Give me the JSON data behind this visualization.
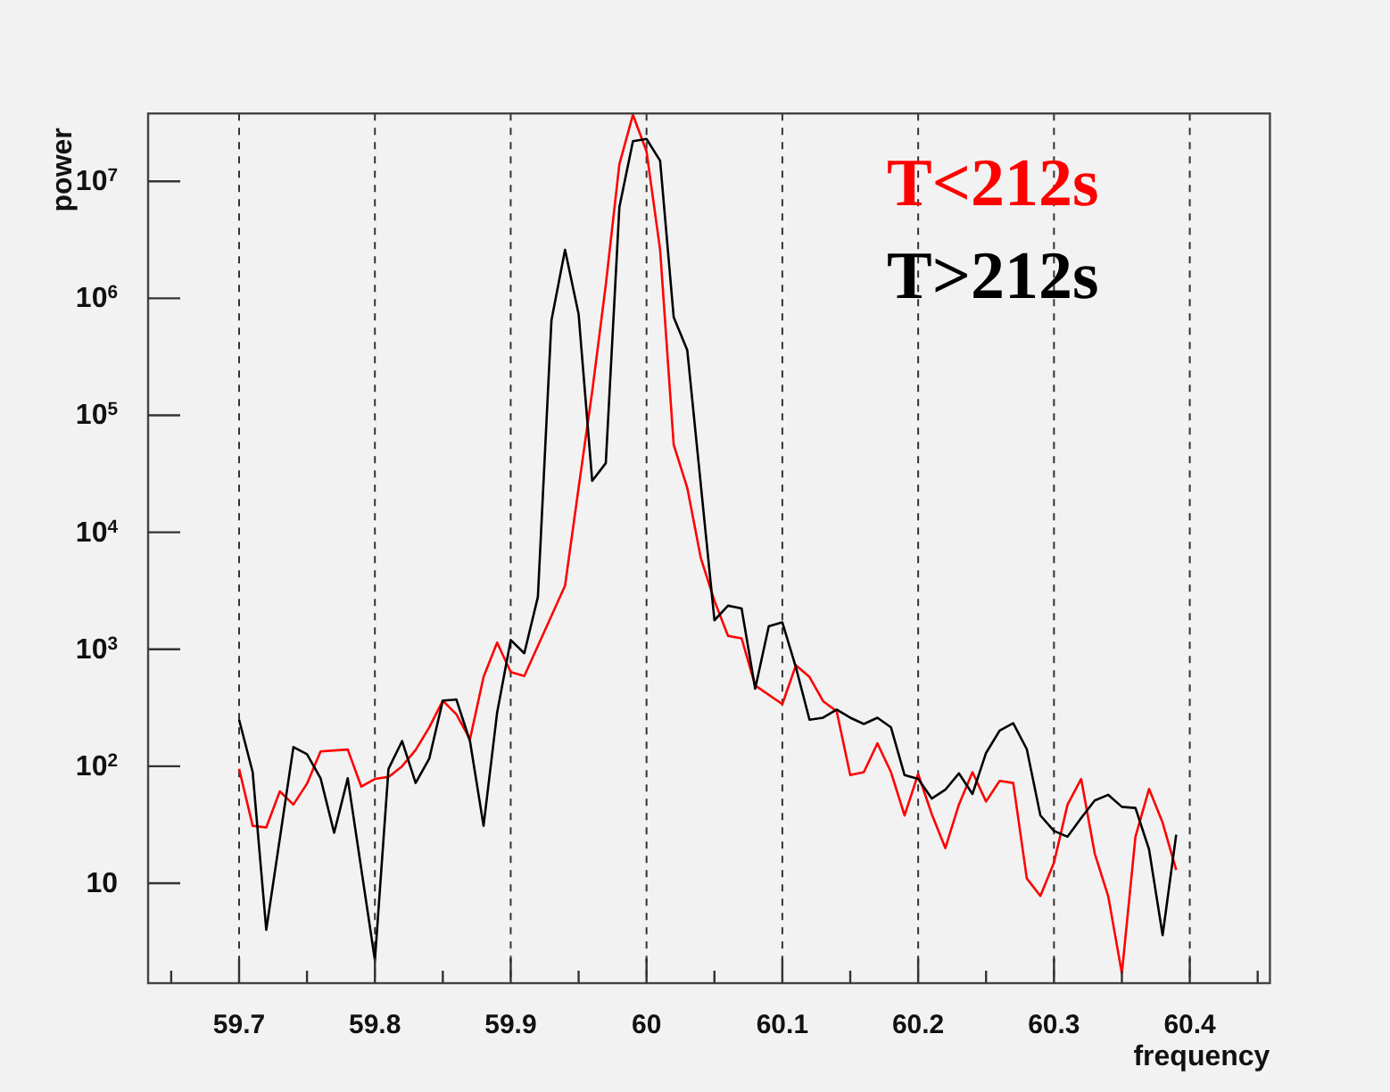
{
  "chart_data": {
    "type": "line",
    "xlabel": "frequency",
    "ylabel": "power",
    "log": "y",
    "grid": "x",
    "legend": "top right",
    "xlim": [
      59.633,
      60.459
    ],
    "ylim": [
      1.4,
      38000000
    ],
    "xticks": [
      {
        "value": 59.65,
        "label": null
      },
      59.7,
      {
        "value": 59.75,
        "label": null
      },
      59.8,
      {
        "value": 59.85,
        "label": null
      },
      59.9,
      {
        "value": 59.95,
        "label": null
      },
      60,
      {
        "value": 60.05,
        "label": null
      },
      60.1,
      {
        "value": 60.15,
        "label": null
      },
      60.2,
      {
        "value": 60.25,
        "label": null
      },
      60.3,
      {
        "value": 60.35,
        "label": null
      },
      60.4,
      {
        "value": 60.45,
        "label": null
      }
    ],
    "yticks": [
      10,
      {
        "value": 100,
        "label": "10$^{2}$"
      },
      {
        "value": 1000,
        "label": "10$^{3}$"
      },
      {
        "value": 10000,
        "label": "10$^{4}$"
      },
      {
        "value": 100000,
        "label": "10$^{5}$"
      },
      {
        "value": 1000000,
        "label": "10$^{6}$"
      },
      {
        "value": 10000000,
        "label": "10$^{7}$"
      }
    ],
    "series": [
      {
        "name": "T<212s",
        "color": "#ff0000",
        "x": [
          59.7,
          59.71,
          59.72,
          59.73,
          59.74,
          59.75,
          59.76,
          59.78,
          59.79,
          59.8,
          59.81,
          59.82,
          59.83,
          59.84,
          59.85,
          59.86,
          59.87,
          59.88,
          59.89,
          59.9,
          59.91,
          59.94,
          59.95,
          59.96,
          59.97,
          59.98,
          59.99,
          60.0,
          60.01,
          60.02,
          60.03,
          60.04,
          60.05,
          60.06,
          60.07,
          60.08,
          60.1,
          60.11,
          60.12,
          60.13,
          60.14,
          60.15,
          60.16,
          60.17,
          60.18,
          60.19,
          60.2,
          60.21,
          60.22,
          60.23,
          60.24,
          60.25,
          60.26,
          60.27,
          60.28,
          60.29,
          60.3,
          60.31,
          60.32,
          60.33,
          60.34,
          60.35,
          60.36,
          60.37,
          60.38,
          60.39
        ],
        "values": [
          95,
          31,
          30,
          61,
          47,
          71,
          134,
          139,
          67,
          78,
          81,
          100,
          138,
          215,
          364,
          278,
          170,
          580,
          1140,
          640,
          590,
          3500,
          24000,
          160000,
          1300000,
          14000000,
          37000000,
          18000000,
          2600000,
          56000,
          24000,
          6000,
          2600,
          1300,
          1240,
          490,
          340,
          730,
          580,
          360,
          295,
          84,
          89,
          157,
          89,
          38,
          86,
          39,
          20,
          47,
          89,
          50,
          75,
          72,
          11,
          7.8,
          15,
          47,
          78,
          18,
          7.7,
          1.7,
          25,
          64,
          33,
          13
        ]
      },
      {
        "name": "T>212s",
        "color": "#000000",
        "x": [
          59.7,
          59.71,
          59.72,
          59.74,
          59.75,
          59.76,
          59.77,
          59.78,
          59.8,
          59.81,
          59.82,
          59.83,
          59.84,
          59.85,
          59.86,
          59.87,
          59.88,
          59.89,
          59.9,
          59.91,
          59.92,
          59.93,
          59.94,
          59.95,
          59.96,
          59.97,
          59.98,
          59.99,
          60.0,
          60.01,
          60.02,
          60.03,
          60.05,
          60.06,
          60.07,
          60.08,
          60.09,
          60.1,
          60.11,
          60.12,
          60.13,
          60.14,
          60.15,
          60.16,
          60.17,
          60.18,
          60.19,
          60.2,
          60.21,
          60.22,
          60.23,
          60.24,
          60.25,
          60.26,
          60.27,
          60.28,
          60.29,
          60.3,
          60.31,
          60.32,
          60.33,
          60.34,
          60.35,
          60.36,
          60.37,
          60.38,
          60.39
        ],
        "values": [
          250,
          89,
          4,
          146,
          127,
          79,
          27,
          79,
          2.2,
          95,
          164,
          72,
          116,
          364,
          372,
          164,
          31,
          288,
          1200,
          925,
          2800,
          650000,
          2600000,
          730000,
          27500,
          39000,
          6000000,
          22000000,
          23000000,
          15000000,
          690000,
          360000,
          1770,
          2360,
          2230,
          460,
          1570,
          1700,
          700,
          250,
          260,
          305,
          260,
          230,
          260,
          215,
          84,
          78,
          53,
          63,
          87,
          58,
          130,
          202,
          233,
          140,
          38,
          28,
          25,
          36,
          51,
          57,
          45,
          44,
          19.5,
          3.6,
          26
        ]
      }
    ]
  }
}
